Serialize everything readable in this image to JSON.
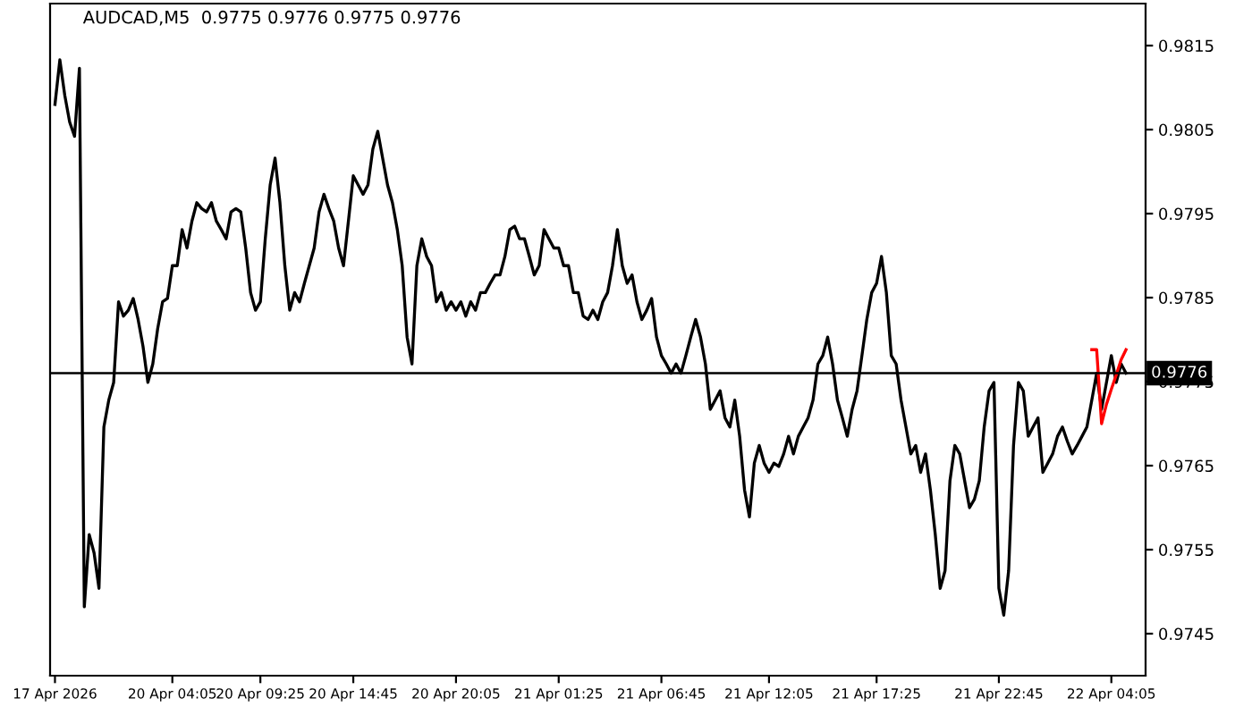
{
  "chart_data": {
    "type": "line",
    "title": "AUDCAD,M5  0.9775 0.9776 0.9775 0.9776",
    "categories": [
      "17 Apr 2026",
      null,
      null,
      null,
      null,
      null,
      null,
      null,
      null,
      null,
      null,
      null,
      null,
      null,
      null,
      null,
      null,
      null,
      null,
      null,
      null,
      null,
      null,
      null,
      "20 Apr 04:05",
      null,
      null,
      null,
      null,
      null,
      null,
      null,
      null,
      null,
      null,
      null,
      null,
      null,
      null,
      null,
      null,
      null,
      "20 Apr 09:25",
      null,
      null,
      null,
      null,
      null,
      null,
      null,
      null,
      null,
      null,
      null,
      null,
      null,
      null,
      null,
      null,
      null,
      null,
      "20 Apr 14:45",
      null,
      null,
      null,
      null,
      null,
      null,
      null,
      null,
      null,
      null,
      null,
      null,
      null,
      null,
      null,
      null,
      null,
      null,
      null,
      null,
      "20 Apr 20:05",
      null,
      null,
      null,
      null,
      null,
      null,
      null,
      null,
      null,
      null,
      null,
      null,
      null,
      null,
      null,
      null,
      null,
      null,
      null,
      null,
      "21 Apr 01:25",
      null,
      null,
      null,
      null,
      null,
      null,
      null,
      null,
      null,
      null,
      null,
      null,
      null,
      null,
      null,
      null,
      null,
      null,
      null,
      null,
      "21 Apr 06:45",
      null,
      null,
      null,
      null,
      null,
      null,
      null,
      null,
      null,
      null,
      null,
      null,
      null,
      null,
      null,
      null,
      null,
      null,
      null,
      null,
      null,
      "21 Apr 12:05",
      null,
      null,
      null,
      null,
      null,
      null,
      null,
      null,
      null,
      null,
      null,
      null,
      null,
      null,
      null,
      null,
      null,
      null,
      null,
      null,
      null,
      "21 Apr 17:25",
      null,
      null,
      null,
      null,
      null,
      null,
      null,
      null,
      null,
      null,
      null,
      null,
      null,
      null,
      null,
      null,
      null,
      null,
      null,
      null,
      null,
      null,
      null,
      null,
      "21 Apr 22:45",
      null,
      null,
      null,
      null,
      null,
      null,
      null,
      null,
      null,
      null,
      null,
      null,
      null,
      null,
      null,
      null,
      null,
      null,
      null,
      null,
      null,
      null,
      "22 Apr 04:05",
      null,
      null,
      null
    ],
    "series": [
      {
        "color": "#000000",
        "values": [
          0.9808,
          0.98133,
          0.98091,
          0.98059,
          0.98042,
          0.98123,
          0.97482,
          0.97568,
          0.97546,
          0.97504,
          0.97696,
          0.97728,
          0.97749,
          0.97845,
          0.97828,
          0.97835,
          0.97849,
          0.97824,
          0.97792,
          0.97749,
          0.97771,
          0.97813,
          0.97845,
          0.97849,
          0.97888,
          0.97888,
          0.97931,
          0.97909,
          0.97941,
          0.97963,
          0.97956,
          0.97952,
          0.97963,
          0.97941,
          0.97931,
          0.9792,
          0.97952,
          0.97956,
          0.97952,
          0.97909,
          0.97856,
          0.97835,
          0.97845,
          0.9792,
          0.97984,
          0.98016,
          0.97963,
          0.97888,
          0.97835,
          0.97856,
          0.97845,
          0.97867,
          0.97888,
          0.97909,
          0.97952,
          0.97973,
          0.97956,
          0.97941,
          0.97909,
          0.97888,
          0.97941,
          0.97995,
          0.97984,
          0.97973,
          0.97984,
          0.98027,
          0.98048,
          0.98016,
          0.97984,
          0.97963,
          0.97931,
          0.97888,
          0.97803,
          0.97771,
          0.97888,
          0.9792,
          0.97899,
          0.97888,
          0.97845,
          0.97856,
          0.97835,
          0.97845,
          0.97835,
          0.97845,
          0.97828,
          0.97845,
          0.97835,
          0.97856,
          0.97856,
          0.97867,
          0.97877,
          0.97877,
          0.97899,
          0.97931,
          0.97935,
          0.9792,
          0.9792,
          0.97899,
          0.97877,
          0.97888,
          0.97931,
          0.9792,
          0.97909,
          0.97909,
          0.97888,
          0.97888,
          0.97856,
          0.97856,
          0.97828,
          0.97824,
          0.97835,
          0.97824,
          0.97845,
          0.97856,
          0.97888,
          0.97931,
          0.97888,
          0.97867,
          0.97877,
          0.97845,
          0.97824,
          0.97835,
          0.97849,
          0.97803,
          0.97781,
          0.97771,
          0.9776,
          0.97771,
          0.9776,
          0.97781,
          0.97803,
          0.97824,
          0.97803,
          0.97771,
          0.97717,
          0.97728,
          0.97739,
          0.97707,
          0.97696,
          0.97728,
          0.97685,
          0.97621,
          0.97589,
          0.97653,
          0.97674,
          0.97653,
          0.97642,
          0.97653,
          0.97649,
          0.97664,
          0.97685,
          0.97664,
          0.97685,
          0.97696,
          0.97707,
          0.97728,
          0.97771,
          0.97781,
          0.97803,
          0.97771,
          0.97728,
          0.97707,
          0.97685,
          0.97717,
          0.97739,
          0.97781,
          0.97824,
          0.97856,
          0.97867,
          0.97899,
          0.97856,
          0.97781,
          0.97771,
          0.97728,
          0.97696,
          0.97664,
          0.97674,
          0.97642,
          0.97664,
          0.97621,
          0.97568,
          0.97504,
          0.97525,
          0.97632,
          0.97674,
          0.97664,
          0.97632,
          0.976,
          0.9761,
          0.97632,
          0.97696,
          0.97739,
          0.97749,
          0.97504,
          0.97472,
          0.97525,
          0.97674,
          0.97749,
          0.97739,
          0.97685,
          0.97696,
          0.97707,
          0.97642,
          0.97653,
          0.97664,
          0.97685,
          0.97696,
          0.97679,
          0.97664,
          0.97674,
          0.97685,
          0.97696,
          0.97728,
          0.9776,
          0.97717,
          0.97749,
          0.97781,
          0.97749,
          0.97771,
          0.9776
        ]
      },
      {
        "color": "#ff0000",
        "values": [
          null,
          null,
          null,
          null,
          null,
          null,
          null,
          null,
          null,
          null,
          null,
          null,
          null,
          null,
          null,
          null,
          null,
          null,
          null,
          null,
          null,
          null,
          null,
          null,
          null,
          null,
          null,
          null,
          null,
          null,
          null,
          null,
          null,
          null,
          null,
          null,
          null,
          null,
          null,
          null,
          null,
          null,
          null,
          null,
          null,
          null,
          null,
          null,
          null,
          null,
          null,
          null,
          null,
          null,
          null,
          null,
          null,
          null,
          null,
          null,
          null,
          null,
          null,
          null,
          null,
          null,
          null,
          null,
          null,
          null,
          null,
          null,
          null,
          null,
          null,
          null,
          null,
          null,
          null,
          null,
          null,
          null,
          null,
          null,
          null,
          null,
          null,
          null,
          null,
          null,
          null,
          null,
          null,
          null,
          null,
          null,
          null,
          null,
          null,
          null,
          null,
          null,
          null,
          null,
          null,
          null,
          null,
          null,
          null,
          null,
          null,
          null,
          null,
          null,
          null,
          null,
          null,
          null,
          null,
          null,
          null,
          null,
          null,
          null,
          null,
          null,
          null,
          null,
          null,
          null,
          null,
          null,
          null,
          null,
          null,
          null,
          null,
          null,
          null,
          null,
          null,
          null,
          null,
          null,
          null,
          null,
          null,
          null,
          null,
          null,
          null,
          null,
          null,
          null,
          null,
          null,
          null,
          null,
          null,
          null,
          null,
          null,
          null,
          null,
          null,
          null,
          null,
          null,
          null,
          null,
          null,
          null,
          null,
          null,
          null,
          null,
          null,
          null,
          null,
          null,
          null,
          null,
          null,
          null,
          null,
          null,
          null,
          null,
          null,
          null,
          null,
          null,
          null,
          null,
          null,
          null,
          null,
          null,
          null,
          null,
          null,
          null,
          null,
          null,
          null,
          null,
          null,
          null,
          null,
          null,
          null,
          null,
          0.97788,
          0.97788,
          0.977,
          0.97723,
          0.97741,
          0.97758,
          0.97776,
          0.97788
        ]
      }
    ],
    "ylim": [
      0.974,
      0.982
    ],
    "yticks": [
      0.9745,
      0.9755,
      0.9765,
      0.9775,
      0.9785,
      0.9795,
      0.9805,
      0.9815
    ],
    "ref_lines": [
      {
        "axis": "y",
        "value": 0.9776,
        "label": "0.9776",
        "color": "#000000"
      }
    ],
    "grid": false
  }
}
